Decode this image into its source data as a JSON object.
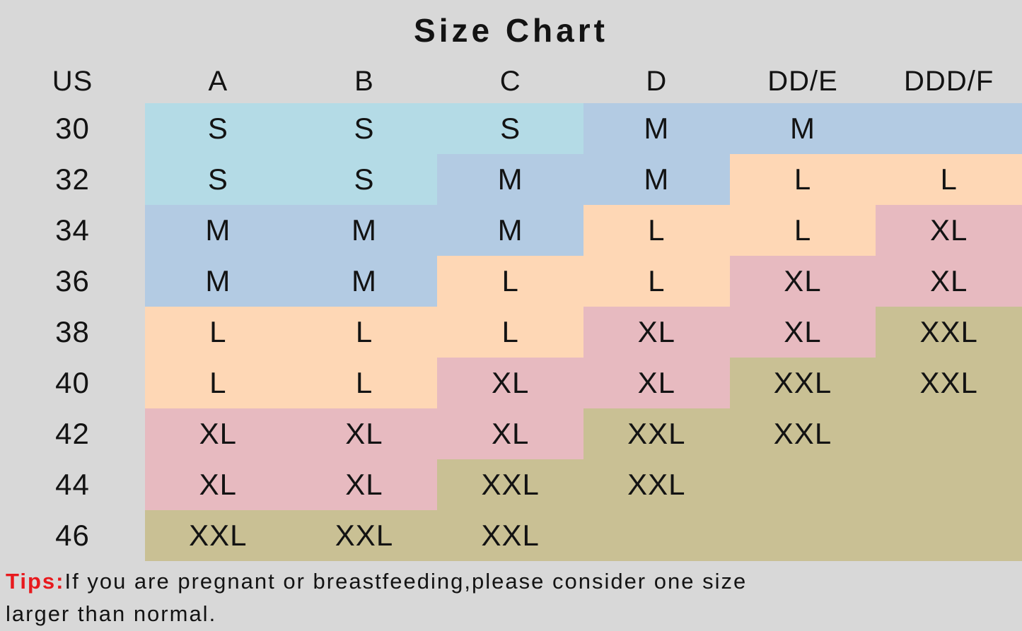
{
  "title": "Size Chart",
  "chart_data": {
    "type": "table",
    "title": "Size Chart",
    "columns": [
      "US",
      "A",
      "B",
      "C",
      "D",
      "DD/E",
      "DDD/F"
    ],
    "rows": [
      {
        "us": "30",
        "cells": [
          {
            "size": "S",
            "color": "S"
          },
          {
            "size": "S",
            "color": "S"
          },
          {
            "size": "S",
            "color": "S"
          },
          {
            "size": "M",
            "color": "M"
          },
          {
            "size": "M",
            "color": "M"
          },
          {
            "size": "",
            "color": "M"
          }
        ]
      },
      {
        "us": "32",
        "cells": [
          {
            "size": "S",
            "color": "S"
          },
          {
            "size": "S",
            "color": "S"
          },
          {
            "size": "M",
            "color": "M"
          },
          {
            "size": "M",
            "color": "M"
          },
          {
            "size": "L",
            "color": "L"
          },
          {
            "size": "L",
            "color": "L"
          }
        ]
      },
      {
        "us": "34",
        "cells": [
          {
            "size": "M",
            "color": "M"
          },
          {
            "size": "M",
            "color": "M"
          },
          {
            "size": "M",
            "color": "M"
          },
          {
            "size": "L",
            "color": "L"
          },
          {
            "size": "L",
            "color": "L"
          },
          {
            "size": "XL",
            "color": "XL"
          }
        ]
      },
      {
        "us": "36",
        "cells": [
          {
            "size": "M",
            "color": "M"
          },
          {
            "size": "M",
            "color": "M"
          },
          {
            "size": "L",
            "color": "L"
          },
          {
            "size": "L",
            "color": "L"
          },
          {
            "size": "XL",
            "color": "XL"
          },
          {
            "size": "XL",
            "color": "XL"
          }
        ]
      },
      {
        "us": "38",
        "cells": [
          {
            "size": "L",
            "color": "L"
          },
          {
            "size": "L",
            "color": "L"
          },
          {
            "size": "L",
            "color": "L"
          },
          {
            "size": "XL",
            "color": "XL"
          },
          {
            "size": "XL",
            "color": "XL"
          },
          {
            "size": "XXL",
            "color": "XXL"
          }
        ]
      },
      {
        "us": "40",
        "cells": [
          {
            "size": "L",
            "color": "L"
          },
          {
            "size": "L",
            "color": "L"
          },
          {
            "size": "XL",
            "color": "XL"
          },
          {
            "size": "XL",
            "color": "XL"
          },
          {
            "size": "XXL",
            "color": "XXL"
          },
          {
            "size": "XXL",
            "color": "XXL"
          }
        ]
      },
      {
        "us": "42",
        "cells": [
          {
            "size": "XL",
            "color": "XL"
          },
          {
            "size": "XL",
            "color": "XL"
          },
          {
            "size": "XL",
            "color": "XL"
          },
          {
            "size": "XXL",
            "color": "XXL"
          },
          {
            "size": "XXL",
            "color": "XXL"
          },
          {
            "size": "",
            "color": "XXL"
          }
        ]
      },
      {
        "us": "44",
        "cells": [
          {
            "size": "XL",
            "color": "XL"
          },
          {
            "size": "XL",
            "color": "XL"
          },
          {
            "size": "XXL",
            "color": "XXL"
          },
          {
            "size": "XXL",
            "color": "XXL"
          },
          {
            "size": "",
            "color": "XXL"
          },
          {
            "size": "",
            "color": "XXL"
          }
        ]
      },
      {
        "us": "46",
        "cells": [
          {
            "size": "XXL",
            "color": "XXL"
          },
          {
            "size": "XXL",
            "color": "XXL"
          },
          {
            "size": "XXL",
            "color": "XXL"
          },
          {
            "size": "",
            "color": "XXL"
          },
          {
            "size": "",
            "color": "XXL"
          },
          {
            "size": "",
            "color": "XXL"
          }
        ]
      }
    ],
    "size_colors": {
      "S": "#b4dbe6",
      "M": "#b3cbe3",
      "L": "#fed7b5",
      "XL": "#e7bac0",
      "XXL": "#c9c094"
    }
  },
  "tips": {
    "label": "Tips:",
    "line1": "If you are pregnant or breastfeeding,please consider one size",
    "line2": "larger than normal."
  },
  "colors": {
    "background": "#d8d8d8",
    "text": "#131313",
    "tips_red": "#e8191d"
  }
}
